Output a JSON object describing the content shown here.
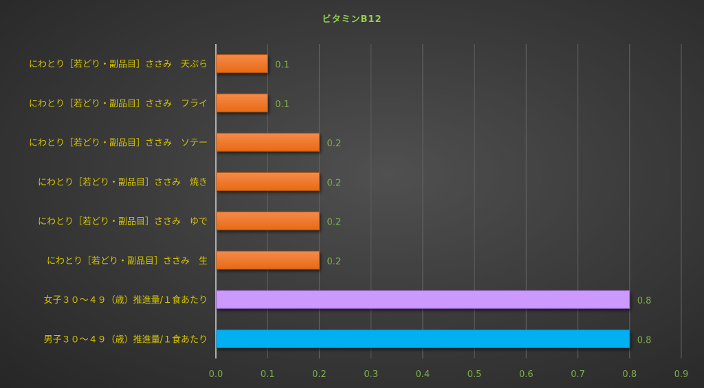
{
  "chart_data": {
    "type": "bar",
    "orientation": "horizontal",
    "title": "ビタミンB12",
    "xlabel": "",
    "ylabel": "",
    "xlim": [
      0,
      0.9
    ],
    "xticks": [
      "0.0",
      "0.1",
      "0.2",
      "0.3",
      "0.4",
      "0.5",
      "0.6",
      "0.7",
      "0.8",
      "0.9"
    ],
    "grid": true,
    "categories": [
      "にわとり［若どり・副品目］ささみ　天ぷら",
      "にわとり［若どり・副品目］ささみ　フライ",
      "にわとり［若どり・副品目］ささみ　ソテー",
      "にわとり［若どり・副品目］ささみ　焼き",
      "にわとり［若どり・副品目］ささみ　ゆで",
      "にわとり［若どり・副品目］ささみ　生",
      "女子３０～４９（歳）推進量/１食あたり",
      "男子３０～４９（歳）推進量/１食あたり"
    ],
    "values": [
      0.1,
      0.1,
      0.2,
      0.2,
      0.2,
      0.2,
      0.8,
      0.8
    ],
    "data_labels": [
      "0.1",
      "0.1",
      "0.2",
      "0.2",
      "0.2",
      "0.2",
      "0.8",
      "0.8"
    ],
    "colors": [
      "#ee7a2a",
      "#ee7a2a",
      "#ee7a2a",
      "#ee7a2a",
      "#ee7a2a",
      "#ee7a2a",
      "#cc99ff",
      "#00b0f0"
    ]
  }
}
